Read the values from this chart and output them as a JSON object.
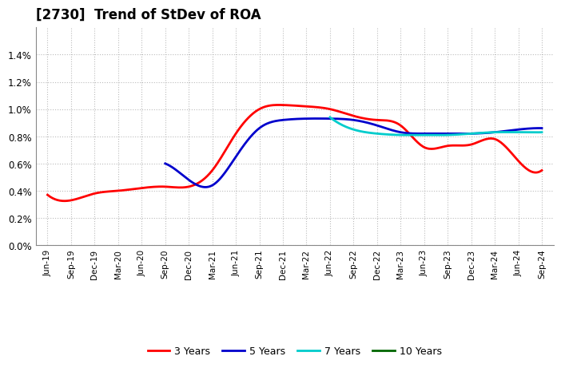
{
  "title": "[2730]  Trend of StDev of ROA",
  "ylim": [
    0.0,
    0.016
  ],
  "yticks": [
    0.0,
    0.002,
    0.004,
    0.006,
    0.008,
    0.01,
    0.012,
    0.014
  ],
  "ytick_labels": [
    "0.0%",
    "0.2%",
    "0.4%",
    "0.6%",
    "0.8%",
    "1.0%",
    "1.2%",
    "1.4%"
  ],
  "x_labels": [
    "Jun-19",
    "Sep-19",
    "Dec-19",
    "Mar-20",
    "Jun-20",
    "Sep-20",
    "Dec-20",
    "Mar-21",
    "Jun-21",
    "Sep-21",
    "Dec-21",
    "Mar-22",
    "Jun-22",
    "Sep-22",
    "Dec-22",
    "Mar-23",
    "Jun-23",
    "Sep-23",
    "Dec-23",
    "Mar-24",
    "Jun-24",
    "Sep-24"
  ],
  "series_3y": [
    0.0037,
    0.0033,
    0.0038,
    0.004,
    0.0042,
    0.0043,
    0.0043,
    0.0055,
    0.0082,
    0.01,
    0.0103,
    0.0102,
    0.01,
    0.0095,
    0.0092,
    0.0088,
    0.0072,
    0.0073,
    0.0074,
    0.0078,
    0.0062,
    0.0055
  ],
  "series_5y": [
    null,
    null,
    null,
    null,
    null,
    0.006,
    0.0048,
    0.0044,
    0.0065,
    0.0086,
    0.0092,
    0.0093,
    0.0093,
    0.0092,
    0.0088,
    0.0083,
    0.0082,
    0.0082,
    0.0082,
    0.0083,
    0.0085,
    0.0086
  ],
  "series_7y": [
    null,
    null,
    null,
    null,
    null,
    null,
    null,
    null,
    null,
    null,
    null,
    null,
    0.0094,
    0.0085,
    0.0082,
    0.0081,
    0.0081,
    0.0081,
    0.0082,
    0.0083,
    0.0083,
    0.0083
  ],
  "series_10y": [
    null,
    null,
    null,
    null,
    null,
    null,
    null,
    null,
    null,
    null,
    null,
    null,
    null,
    null,
    null,
    null,
    null,
    null,
    null,
    null,
    null,
    null
  ],
  "color_3y": "#FF0000",
  "color_5y": "#0000CC",
  "color_7y": "#00CCCC",
  "color_10y": "#006600",
  "linewidth": 2.0,
  "background_color": "#FFFFFF",
  "grid_color": "#AAAAAA",
  "title_fontsize": 12,
  "legend_labels": [
    "3 Years",
    "5 Years",
    "7 Years",
    "10 Years"
  ]
}
